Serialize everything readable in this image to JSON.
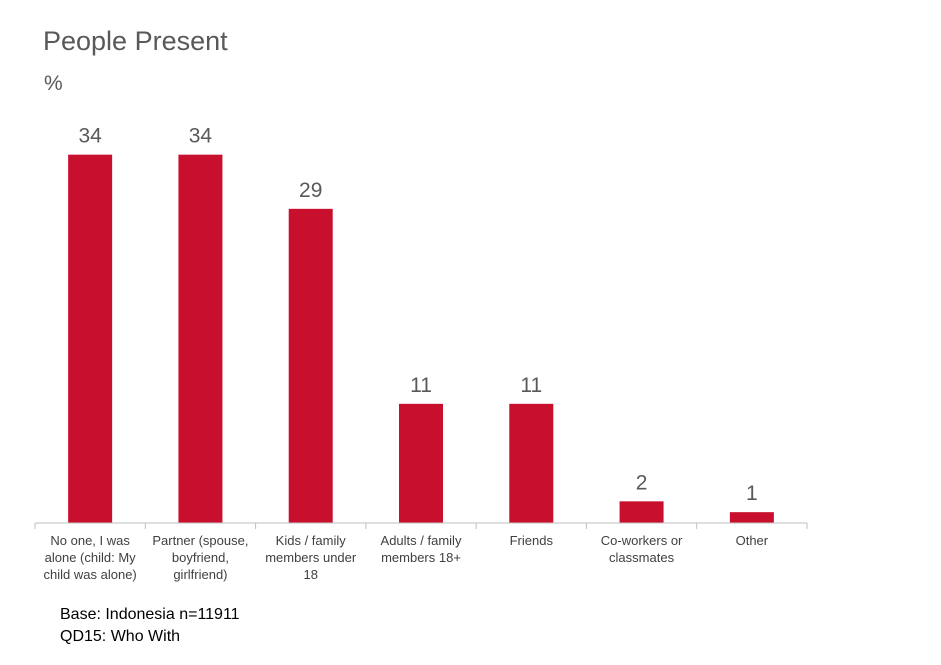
{
  "chart_data": {
    "type": "bar",
    "title": "People Present",
    "ylabel": "%",
    "categories": [
      [
        "No one, I was",
        "alone (child: My",
        "child was alone)"
      ],
      [
        "Partner (spouse,",
        "boyfriend,",
        "girlfriend)"
      ],
      [
        "Kids / family",
        "members under",
        "18"
      ],
      [
        "Adults / family",
        "members 18+"
      ],
      [
        "Friends"
      ],
      [
        "Co-workers or",
        "classmates"
      ],
      [
        "Other"
      ]
    ],
    "values": [
      34,
      34,
      29,
      11,
      11,
      2,
      1
    ],
    "ylim": [
      0,
      36
    ],
    "grid": false,
    "bar_color": "#C8102E"
  },
  "footnotes": {
    "base": "Base: Indonesia n=11911",
    "question": "QD15: Who With"
  }
}
